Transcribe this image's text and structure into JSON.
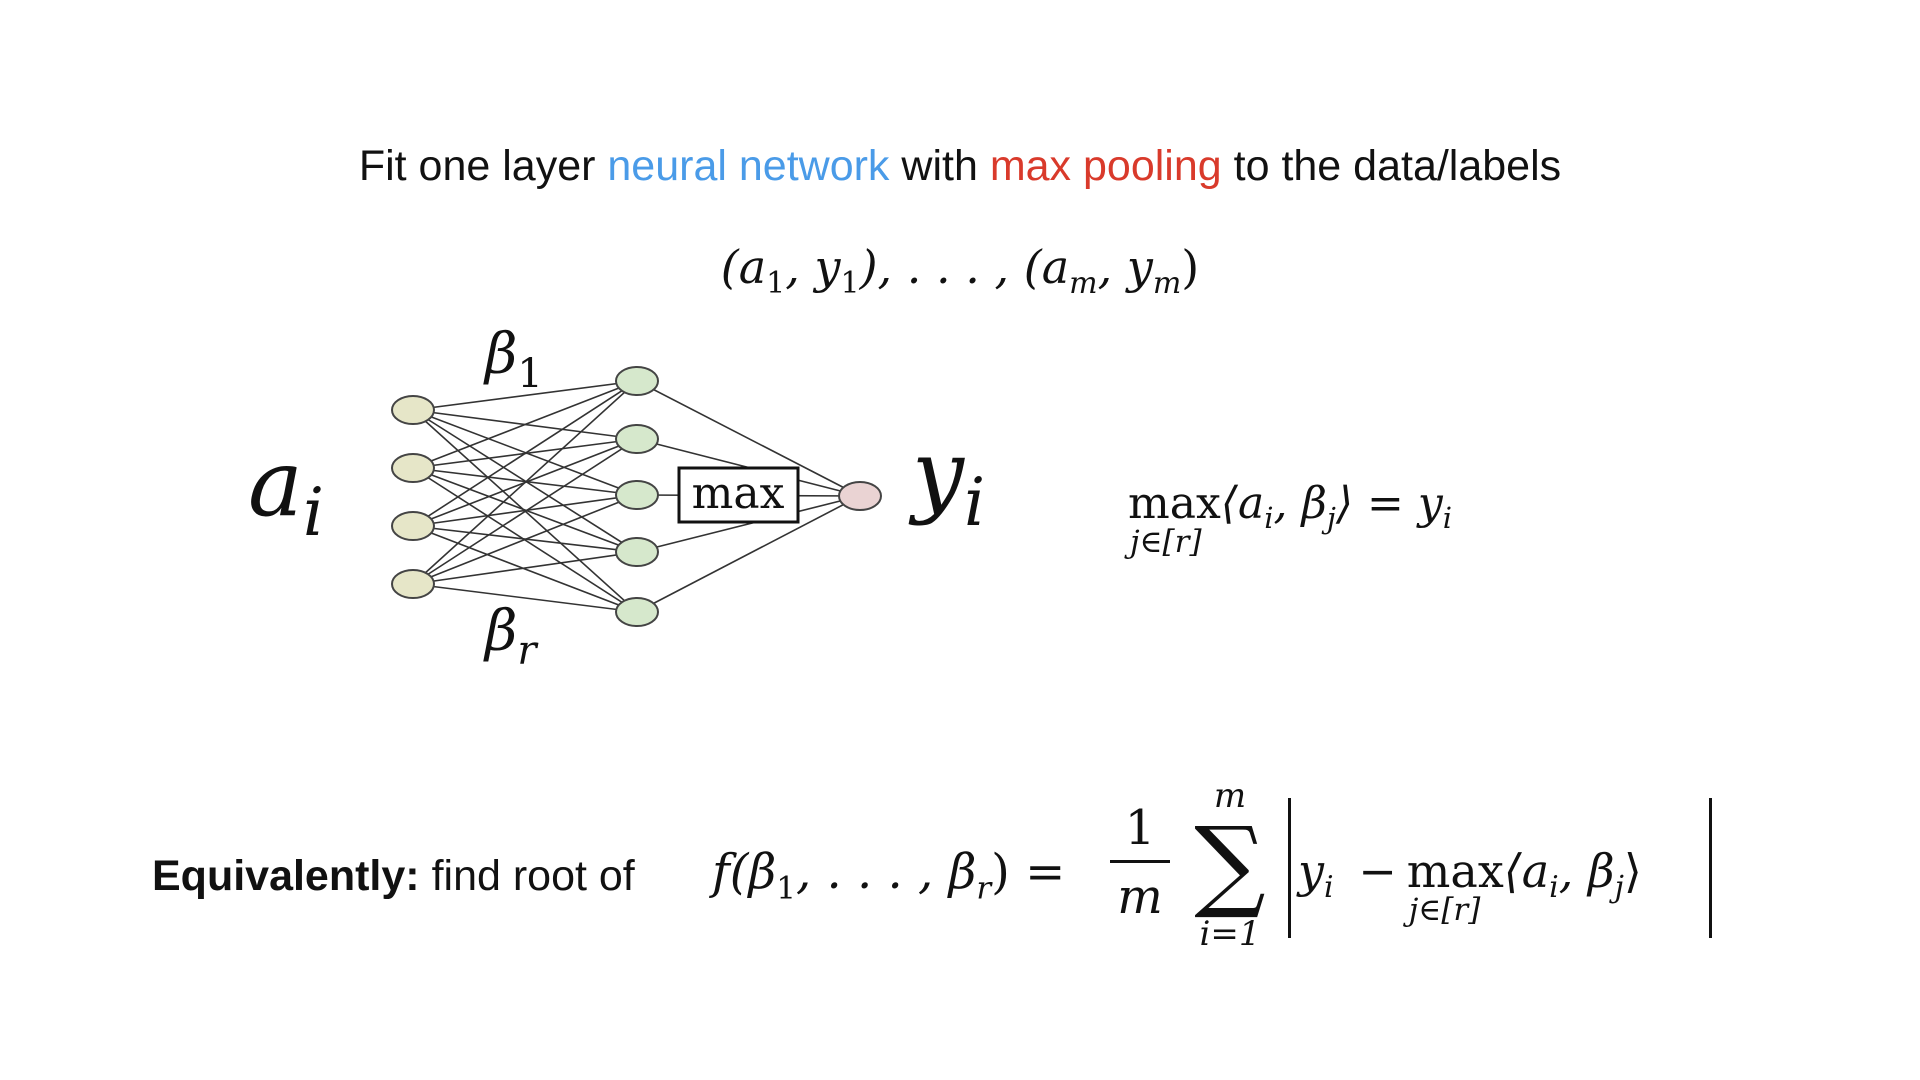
{
  "title": {
    "part1": "Fit one layer ",
    "blue": "neural network",
    "part2": " with ",
    "red": "max pooling",
    "part3": " to the data/labels",
    "blue_color": "#4a9be8",
    "red_color": "#d93a2b"
  },
  "dataset": {
    "open1": "(a",
    "sub1": "1",
    "comma1": ", y",
    "sub2": "1",
    "mid": "), . . . , (a",
    "sub3": "m",
    "comma2": ", y",
    "sub4": "m",
    "close": ")"
  },
  "diagram": {
    "input_label": "a",
    "input_sub": "i",
    "output_label": "y",
    "output_sub": "i",
    "beta_top": "β",
    "beta_top_sub": "1",
    "beta_bottom": "β",
    "beta_bottom_sub": "r",
    "max_box": "max",
    "input_node_color": "#e6e6c8",
    "hidden_node_color": "#d6e8cc",
    "output_node_color": "#ead3d3"
  },
  "right_equation": {
    "max": "max",
    "sub": "j∈[r]",
    "body": "⟨a",
    "a_sub": "i",
    "mid": ", β",
    "b_sub": "j",
    "close": "⟩ = y",
    "y_sub": "i"
  },
  "bottom": {
    "bold": "Equivalently:",
    "rest": " find root of",
    "f": "f(β",
    "f_sub1": "1",
    "f_mid": ", . . . , β",
    "f_sub2": "r",
    "f_close": ") =",
    "frac_num": "1",
    "frac_den": "m",
    "sum_top": "m",
    "sum_sym": "∑",
    "sum_bottom": "i=1",
    "y": "y",
    "y_sub": "i",
    "minus": "−",
    "max": "max",
    "max_sub": "j∈[r]",
    "inner": "⟨a",
    "inner_a_sub": "i",
    "inner_mid": ", β",
    "inner_b_sub": "j",
    "inner_close": "⟩"
  }
}
